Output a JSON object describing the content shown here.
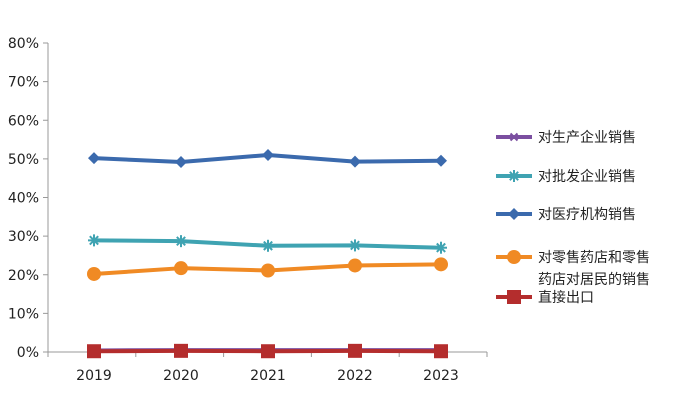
{
  "chart_data": {
    "type": "line",
    "categories": [
      "2019",
      "2020",
      "2021",
      "2022",
      "2023"
    ],
    "ylim": [
      0,
      80
    ],
    "y_ticks": [
      "0%",
      "10%",
      "20%",
      "30%",
      "40%",
      "50%",
      "60%",
      "70%",
      "80%"
    ],
    "y_tick_values": [
      0,
      10,
      20,
      30,
      40,
      50,
      60,
      70,
      80
    ],
    "grid": false,
    "legend_position": "right",
    "series": [
      {
        "name": "对生产企业销售",
        "color": "#7b4fa0",
        "marker": "star",
        "values": [
          0.4,
          0.5,
          0.5,
          0.5,
          0.5
        ]
      },
      {
        "name": "对批发企业销售",
        "color": "#3fa3b2",
        "marker": "asterisk",
        "values": [
          28.9,
          28.7,
          27.5,
          27.6,
          27.0
        ]
      },
      {
        "name": "对医疗机构销售",
        "color": "#3b6aad",
        "marker": "diamond",
        "values": [
          50.2,
          49.2,
          51.0,
          49.3,
          49.5
        ]
      },
      {
        "name_lines": [
          "对零售药店和零售",
          "药店对居民的销售"
        ],
        "color": "#f08a24",
        "marker": "circle",
        "values": [
          20.2,
          21.7,
          21.1,
          22.4,
          22.7
        ]
      },
      {
        "name": "直接出口",
        "color": "#b42d2d",
        "marker": "square",
        "values": [
          0.2,
          0.3,
          0.2,
          0.3,
          0.2
        ]
      }
    ]
  }
}
